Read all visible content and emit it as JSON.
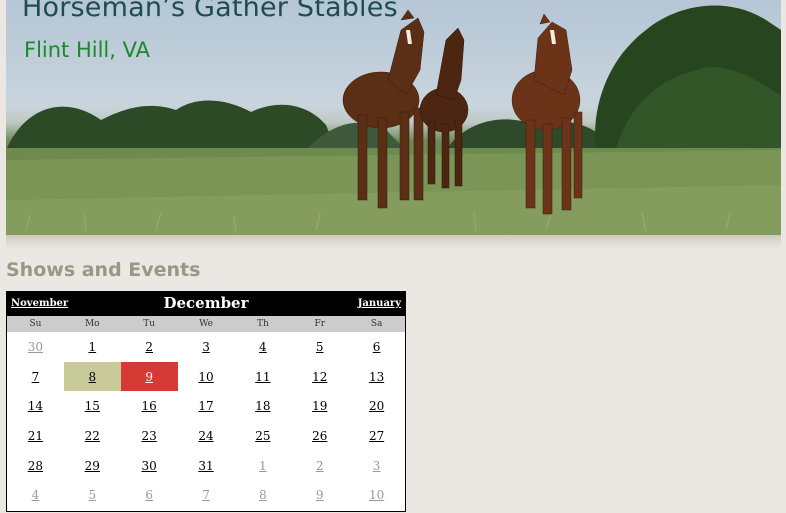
{
  "header": {
    "title": "Horseman’s Gather Stables",
    "location": "Flint Hill, VA"
  },
  "section": {
    "heading": "Shows and Events"
  },
  "calendar": {
    "prev_month": "November",
    "month": "December",
    "next_month": "January",
    "day_names": [
      "Su",
      "Mo",
      "Tu",
      "We",
      "Th",
      "Fr",
      "Sa"
    ],
    "weeks": [
      [
        {
          "d": "30",
          "other": true
        },
        {
          "d": "1"
        },
        {
          "d": "2"
        },
        {
          "d": "3"
        },
        {
          "d": "4"
        },
        {
          "d": "5"
        },
        {
          "d": "6"
        }
      ],
      [
        {
          "d": "7"
        },
        {
          "d": "8",
          "hl": "green"
        },
        {
          "d": "9",
          "hl": "red"
        },
        {
          "d": "10"
        },
        {
          "d": "11"
        },
        {
          "d": "12"
        },
        {
          "d": "13"
        }
      ],
      [
        {
          "d": "14"
        },
        {
          "d": "15"
        },
        {
          "d": "16"
        },
        {
          "d": "17"
        },
        {
          "d": "18"
        },
        {
          "d": "19"
        },
        {
          "d": "20"
        }
      ],
      [
        {
          "d": "21"
        },
        {
          "d": "22"
        },
        {
          "d": "23"
        },
        {
          "d": "24"
        },
        {
          "d": "25"
        },
        {
          "d": "26"
        },
        {
          "d": "27"
        }
      ],
      [
        {
          "d": "28"
        },
        {
          "d": "29"
        },
        {
          "d": "30"
        },
        {
          "d": "31"
        },
        {
          "d": "1",
          "other": true
        },
        {
          "d": "2",
          "other": true
        },
        {
          "d": "3",
          "other": true
        }
      ],
      [
        {
          "d": "4",
          "other": true
        },
        {
          "d": "5",
          "other": true
        },
        {
          "d": "6",
          "other": true
        },
        {
          "d": "7",
          "other": true
        },
        {
          "d": "8",
          "other": true
        },
        {
          "d": "9",
          "other": true
        },
        {
          "d": "10",
          "other": true
        }
      ]
    ]
  },
  "colors": {
    "page_bg": "#ebe7e3",
    "title": "#1f4c4c",
    "location": "#178a2a",
    "heading": "#9a9784",
    "highlight_green": "#c8cb99",
    "highlight_red": "#d63a35"
  }
}
